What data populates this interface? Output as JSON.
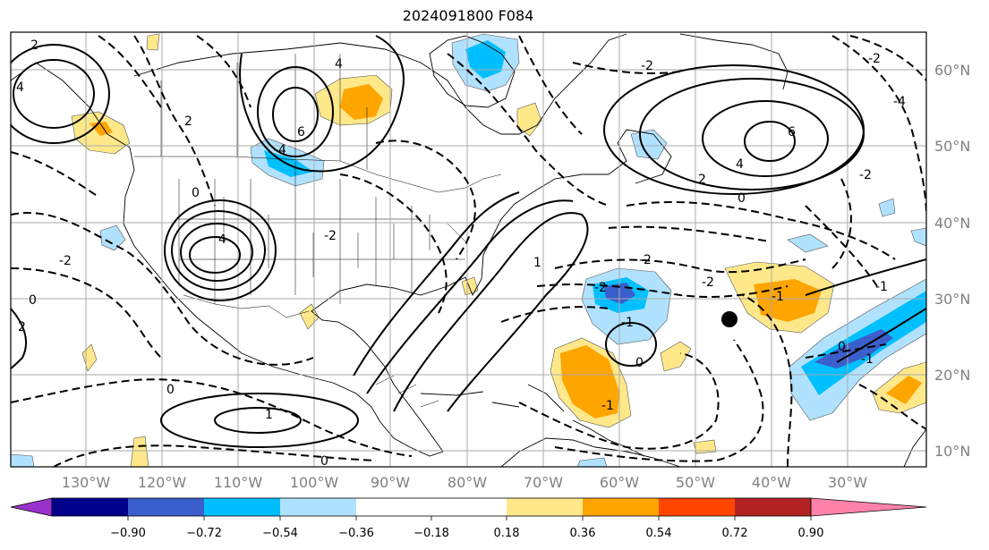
{
  "title": "2024091800 F084",
  "map": {
    "lat_labels": [
      "60°N",
      "50°N",
      "40°N",
      "30°N",
      "20°N",
      "10°N"
    ],
    "lon_labels": [
      "130°W",
      "120°W",
      "110°W",
      "100°W",
      "90°W",
      "80°W",
      "70°W",
      "60°W",
      "50°W",
      "40°W",
      "30°W"
    ],
    "contour_labels": [
      "2",
      "4",
      "-2",
      "0",
      "2",
      "4",
      "6",
      "-4",
      "-2",
      "0",
      "2",
      "4",
      "6",
      "2",
      "0",
      "-2",
      "-4",
      "-2",
      "-2",
      "4",
      "-2",
      "-2",
      "-1",
      "-2",
      "-1",
      "1",
      "0",
      "-1",
      "1",
      "0",
      "-1",
      "0",
      "-1",
      "0"
    ]
  },
  "colorbar": {
    "tick_labels": [
      "−0.90",
      "−0.72",
      "−0.54",
      "−0.36",
      "−0.18",
      "0.18",
      "0.36",
      "0.54",
      "0.72",
      "0.90"
    ],
    "colors": [
      "#9932cc",
      "#00008b",
      "#3a5fcd",
      "#00bfff",
      "#b0e2ff",
      "#ffffff",
      "#ffe88a",
      "#ffa500",
      "#ff4500",
      "#b22222",
      "#ff82ab"
    ]
  }
}
